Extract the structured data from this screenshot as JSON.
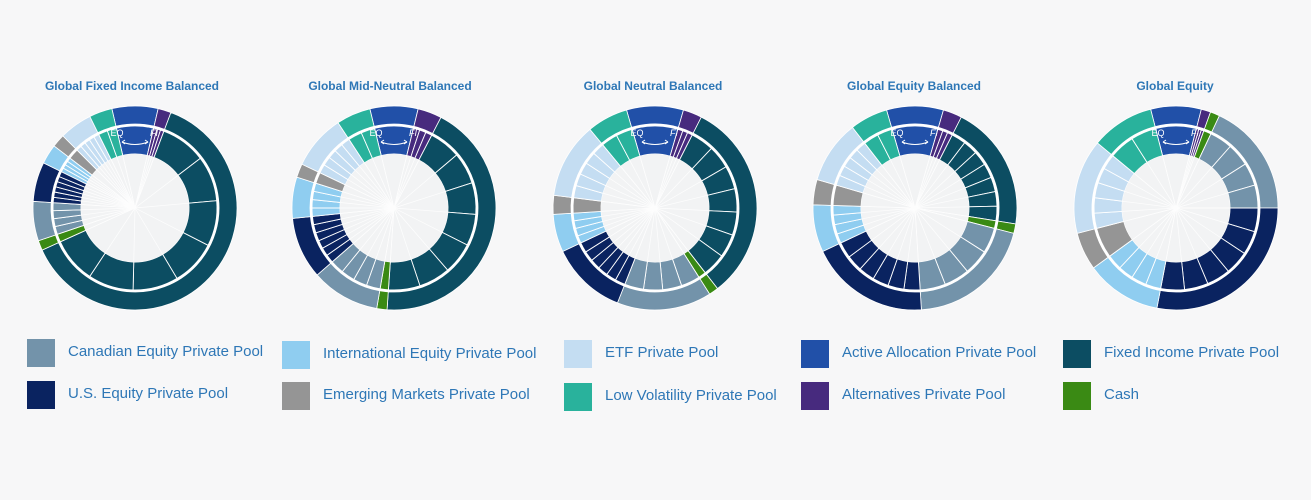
{
  "pools": [
    {
      "key": "can",
      "label": "Canadian Equity Private Pool",
      "color": "#7393aa"
    },
    {
      "key": "us",
      "label": "U.S. Equity Private Pool",
      "color": "#0a2360"
    },
    {
      "key": "intl",
      "label": "International Equity Private Pool",
      "color": "#8fcdf0"
    },
    {
      "key": "em",
      "label": "Emerging Markets Private Pool",
      "color": "#959595"
    },
    {
      "key": "etf",
      "label": "ETF Private Pool",
      "color": "#c4ddf2"
    },
    {
      "key": "lowvol",
      "label": "Low Volatility Private Pool",
      "color": "#29b29c"
    },
    {
      "key": "aa",
      "label": "Active Allocation Private Pool",
      "color": "#2150a8"
    },
    {
      "key": "alt",
      "label": "Alternatives Private Pool",
      "color": "#472a7e"
    },
    {
      "key": "fi",
      "label": "Fixed Income Private Pool",
      "color": "#0c4d62"
    },
    {
      "key": "cash",
      "label": "Cash",
      "color": "#3a8a14"
    }
  ],
  "inner_labels": {
    "eq": "EQ",
    "fi": "FI"
  },
  "chart_data": [
    {
      "type": "pie",
      "title": "Global Fixed Income Balanced",
      "values": {
        "aa": 7,
        "alt": 2,
        "fi": 60,
        "cash": 1.5,
        "can": 6,
        "us": 6,
        "intl": 3,
        "em": 2,
        "etf": 5,
        "lowvol": 3.5
      }
    },
    {
      "type": "pie",
      "title": "Global Mid-Neutral Balanced",
      "values": {
        "aa": 7,
        "alt": 3.5,
        "fi": 40,
        "cash": 1.5,
        "can": 10,
        "us": 9,
        "intl": 6,
        "em": 2,
        "etf": 8,
        "lowvol": 5
      }
    },
    {
      "type": "pie",
      "title": "Global Neutral Balanced",
      "values": {
        "aa": 9,
        "alt": 3,
        "fi": 32,
        "cash": 1.5,
        "can": 15,
        "us": 12,
        "intl": 6,
        "em": 3,
        "etf": 12,
        "lowvol": 6.5
      }
    },
    {
      "type": "pie",
      "title": "Global Equity Balanced",
      "values": {
        "aa": 9,
        "alt": 3,
        "fi": 20,
        "cash": 1.5,
        "can": 20,
        "us": 19,
        "intl": 7.5,
        "em": 4,
        "etf": 10,
        "lowvol": 6
      }
    },
    {
      "type": "pie",
      "title": "Global Equity",
      "values": {
        "aa": 8,
        "alt": 1.5,
        "fi": 0,
        "cash": 1.5,
        "can": 18,
        "us": 28,
        "intl": 12,
        "em": 6,
        "etf": 15,
        "lowvol": 10
      }
    }
  ]
}
